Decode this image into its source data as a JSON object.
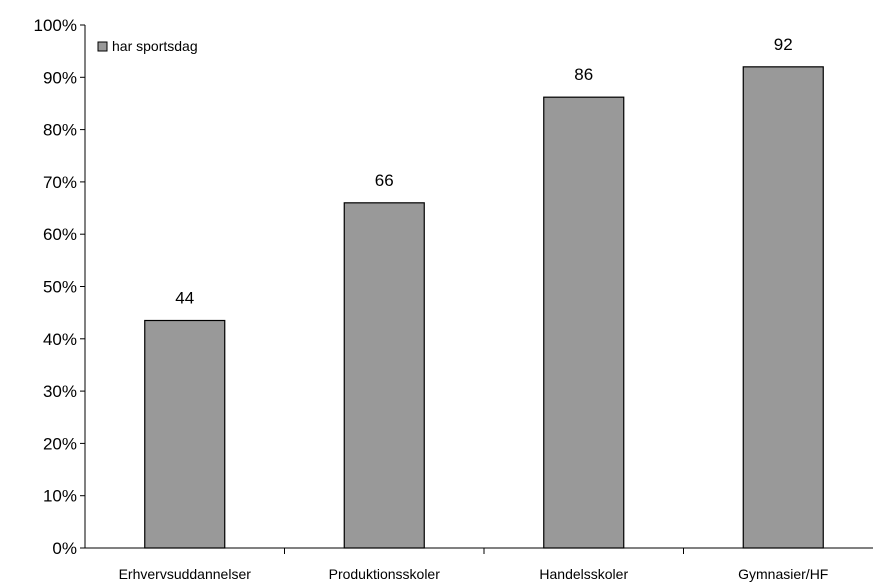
{
  "chart_data": {
    "type": "bar",
    "categories": [
      "Erhvervsuddannelser",
      "Produktionsskoler",
      "Handelsskoler",
      "Gymnasier/HF"
    ],
    "series": [
      {
        "name": "har sportsdag",
        "values": [
          43.5,
          66,
          86.2,
          92
        ],
        "data_labels": [
          "44",
          "66",
          "86",
          "92"
        ],
        "color": "#999999"
      }
    ],
    "ylim": [
      0,
      100
    ],
    "yticks": [
      "0%",
      "10%",
      "20%",
      "30%",
      "40%",
      "50%",
      "60%",
      "70%",
      "80%",
      "90%",
      "100%"
    ],
    "grid": false,
    "legend_position": "top-left",
    "title": "",
    "xlabel": "",
    "ylabel": ""
  }
}
